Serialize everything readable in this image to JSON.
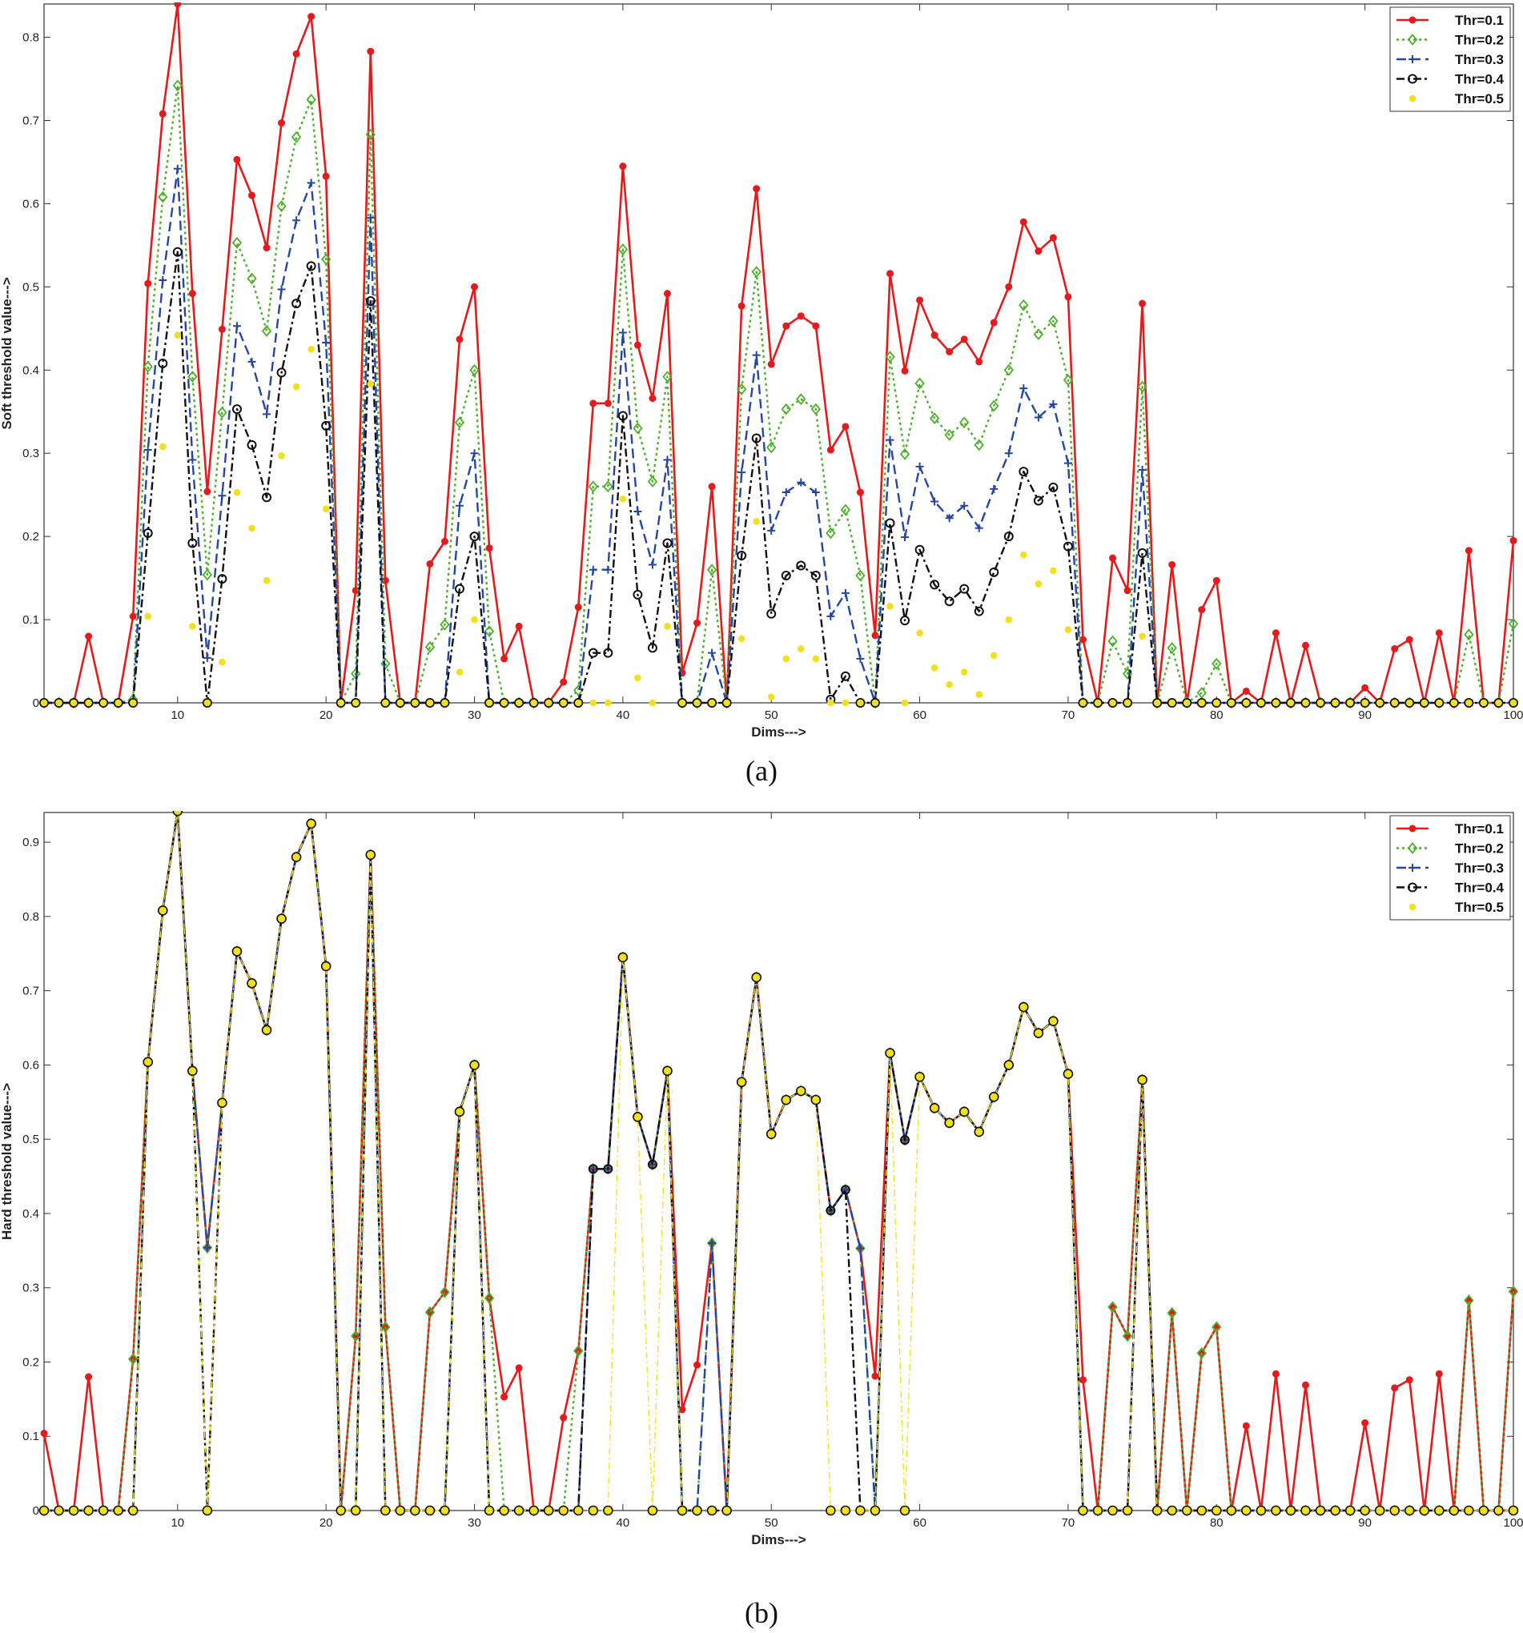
{
  "chart_data": [
    {
      "type": "line",
      "caption": "(a)",
      "xlabel": "Dims--->",
      "ylabel": "Soft threshold value--->",
      "xlim": [
        1,
        100
      ],
      "ylim": [
        0,
        0.84
      ],
      "xticks": [
        10,
        20,
        30,
        40,
        50,
        60,
        70,
        80,
        90,
        100
      ],
      "yticks": [
        0,
        0.1,
        0.2,
        0.3,
        0.4,
        0.5,
        0.6,
        0.7,
        0.8
      ],
      "grid": false,
      "legend_position": "top-right",
      "series": [
        {
          "name": "Thr=0.1",
          "color": "#e41a1c",
          "values": [
            0,
            0,
            0,
            0.08,
            0,
            0,
            0.104,
            0.504,
            0.708,
            0.84,
            0.492,
            0.254,
            0.449,
            0.653,
            0.61,
            0.547,
            0.697,
            0.78,
            0.825,
            0.633,
            0,
            0.135,
            0.783,
            0.147,
            0,
            0,
            0.167,
            0.194,
            0.437,
            0.5,
            0.186,
            0.053,
            0.092,
            0,
            0,
            0.025,
            0.115,
            0.36,
            0.36,
            0.645,
            0.43,
            0.366,
            0.492,
            0.036,
            0.096,
            0.26,
            0,
            0.477,
            0.618,
            0.407,
            0.453,
            0.465,
            0.453,
            0.304,
            0.332,
            0.253,
            0.081,
            0.516,
            0.399,
            0.484,
            0.442,
            0.422,
            0.437,
            0.41,
            0.457,
            0.5,
            0.578,
            0.543,
            0.559,
            0.488,
            0.076,
            0,
            0.174,
            0.135,
            0.48,
            0,
            0.166,
            0,
            0.112,
            0.147,
            0,
            0.014,
            0,
            0.084,
            0,
            0.069,
            0,
            0,
            0,
            0.018,
            0,
            0.065,
            0.076,
            0,
            0.084,
            0,
            0.183,
            0,
            0,
            0.195
          ]
        },
        {
          "name": "Thr=0.2",
          "color": "#4daf2a",
          "values": [
            0,
            0,
            0,
            0,
            0,
            0,
            0.004,
            0.404,
            0.608,
            0.742,
            0.392,
            0.154,
            0.349,
            0.553,
            0.51,
            0.447,
            0.597,
            0.68,
            0.725,
            0.533,
            0,
            0.035,
            0.683,
            0.047,
            0,
            0,
            0.067,
            0.094,
            0.337,
            0.4,
            0.086,
            0,
            0,
            0,
            0,
            0,
            0.015,
            0.26,
            0.26,
            0.545,
            0.33,
            0.266,
            0.392,
            0,
            0,
            0.16,
            0,
            0.377,
            0.518,
            0.307,
            0.353,
            0.365,
            0.353,
            0.204,
            0.232,
            0.153,
            0,
            0.416,
            0.299,
            0.384,
            0.342,
            0.322,
            0.337,
            0.31,
            0.357,
            0.4,
            0.478,
            0.443,
            0.459,
            0.388,
            0,
            0,
            0.074,
            0.035,
            0.38,
            0,
            0.066,
            0,
            0.012,
            0.047,
            0,
            0,
            0,
            0,
            0,
            0,
            0,
            0,
            0,
            0,
            0,
            0,
            0,
            0,
            0,
            0,
            0.082,
            0,
            0,
            0.095
          ]
        },
        {
          "name": "Thr=0.3",
          "color": "#2646a6",
          "values": [
            0,
            0,
            0,
            0,
            0,
            0,
            0,
            0.304,
            0.508,
            0.642,
            0.292,
            0.054,
            0.249,
            0.453,
            0.41,
            0.347,
            0.497,
            0.58,
            0.625,
            0.433,
            0,
            0,
            0.583,
            0,
            0,
            0,
            0,
            0,
            0.237,
            0.3,
            0,
            0,
            0,
            0,
            0,
            0,
            0,
            0.16,
            0.16,
            0.445,
            0.23,
            0.166,
            0.292,
            0,
            0,
            0.06,
            0,
            0.277,
            0.418,
            0.207,
            0.253,
            0.265,
            0.253,
            0.104,
            0.132,
            0.053,
            0,
            0.316,
            0.199,
            0.284,
            0.242,
            0.222,
            0.237,
            0.21,
            0.257,
            0.3,
            0.378,
            0.343,
            0.359,
            0.288,
            0,
            0,
            0,
            0,
            0.28,
            0,
            0,
            0,
            0,
            0,
            0,
            0,
            0,
            0,
            0,
            0,
            0,
            0,
            0,
            0,
            0,
            0,
            0,
            0,
            0,
            0,
            0,
            0,
            0,
            0
          ]
        },
        {
          "name": "Thr=0.4",
          "color": "#111111",
          "values": [
            0,
            0,
            0,
            0,
            0,
            0,
            0,
            0.204,
            0.408,
            0.542,
            0.192,
            0,
            0.149,
            0.353,
            0.31,
            0.247,
            0.397,
            0.48,
            0.525,
            0.333,
            0,
            0,
            0.483,
            0,
            0,
            0,
            0,
            0,
            0.137,
            0.2,
            0,
            0,
            0,
            0,
            0,
            0,
            0,
            0.06,
            0.06,
            0.345,
            0.13,
            0.066,
            0.192,
            0,
            0,
            0,
            0,
            0.177,
            0.318,
            0.107,
            0.153,
            0.165,
            0.153,
            0.004,
            0.032,
            0,
            0,
            0.216,
            0.099,
            0.184,
            0.142,
            0.122,
            0.137,
            0.11,
            0.157,
            0.2,
            0.278,
            0.243,
            0.259,
            0.188,
            0,
            0,
            0,
            0,
            0.18,
            0,
            0,
            0,
            0,
            0,
            0,
            0,
            0,
            0,
            0,
            0,
            0,
            0,
            0,
            0,
            0,
            0,
            0,
            0,
            0,
            0,
            0,
            0,
            0,
            0
          ]
        },
        {
          "name": "Thr=0.5",
          "color": "#f2e01e",
          "values": [
            0,
            0,
            0,
            0,
            0,
            0,
            0,
            0.104,
            0.308,
            0.442,
            0.092,
            0,
            0.049,
            0.253,
            0.21,
            0.147,
            0.297,
            0.38,
            0.425,
            0.233,
            0,
            0,
            0.383,
            0,
            0,
            0,
            0,
            0,
            0.037,
            0.1,
            0,
            0,
            0,
            0,
            0,
            0,
            0,
            0,
            0,
            0.245,
            0.03,
            0,
            0.092,
            0,
            0,
            0,
            0,
            0.077,
            0.218,
            0.007,
            0.053,
            0.065,
            0.053,
            0,
            0,
            0,
            0,
            0.116,
            0,
            0.084,
            0.042,
            0.022,
            0.037,
            0.01,
            0.057,
            0.1,
            0.178,
            0.143,
            0.159,
            0.088,
            0,
            0,
            0,
            0,
            0.08,
            0,
            0,
            0,
            0,
            0,
            0,
            0,
            0,
            0,
            0,
            0,
            0,
            0,
            0,
            0,
            0,
            0,
            0,
            0,
            0,
            0,
            0,
            0,
            0,
            0
          ]
        }
      ]
    },
    {
      "type": "line",
      "caption": "(b)",
      "xlabel": "Dims--->",
      "ylabel": "Hard threshold value--->",
      "xlim": [
        1,
        100
      ],
      "ylim": [
        0,
        0.94
      ],
      "xticks": [
        10,
        20,
        30,
        40,
        50,
        60,
        70,
        80,
        90,
        100
      ],
      "yticks": [
        0,
        0.1,
        0.2,
        0.3,
        0.4,
        0.5,
        0.6,
        0.7,
        0.8,
        0.9
      ],
      "grid": false,
      "legend_position": "top-right",
      "series": [
        {
          "name": "Thr=0.1",
          "color": "#e41a1c",
          "values": [
            0.104,
            0,
            0,
            0.18,
            0,
            0,
            0.204,
            0.604,
            0.808,
            0.942,
            0.592,
            0.354,
            0.549,
            0.753,
            0.71,
            0.647,
            0.797,
            0.88,
            0.925,
            0.733,
            0,
            0.235,
            0.883,
            0.247,
            0,
            0,
            0.267,
            0.294,
            0.537,
            0.6,
            0.286,
            0.153,
            0.192,
            0,
            0,
            0.125,
            0.215,
            0.46,
            0.46,
            0.745,
            0.53,
            0.466,
            0.592,
            0.136,
            0.196,
            0.36,
            0,
            0.577,
            0.718,
            0.507,
            0.553,
            0.565,
            0.553,
            0.404,
            0.432,
            0.353,
            0.181,
            0.616,
            0.499,
            0.584,
            0.542,
            0.522,
            0.537,
            0.51,
            0.557,
            0.6,
            0.678,
            0.643,
            0.659,
            0.588,
            0.176,
            0,
            0.274,
            0.235,
            0.58,
            0,
            0.266,
            0,
            0.212,
            0.247,
            0,
            0.114,
            0,
            0.184,
            0,
            0.169,
            0,
            0,
            0,
            0.118,
            0,
            0.165,
            0.176,
            0,
            0.184,
            0,
            0.283,
            0,
            0,
            0.295
          ]
        },
        {
          "name": "Thr=0.2",
          "color": "#4daf2a",
          "values": [
            0,
            0,
            0,
            0,
            0,
            0,
            0.204,
            0.604,
            0.808,
            0.942,
            0.592,
            0.354,
            0.549,
            0.753,
            0.71,
            0.647,
            0.797,
            0.88,
            0.925,
            0.733,
            0,
            0.235,
            0.883,
            0.247,
            0,
            0,
            0.267,
            0.294,
            0.537,
            0.6,
            0.286,
            0,
            0,
            0,
            0,
            0,
            0.215,
            0.46,
            0.46,
            0.745,
            0.53,
            0.466,
            0.592,
            0,
            0,
            0.36,
            0,
            0.577,
            0.718,
            0.507,
            0.553,
            0.565,
            0.553,
            0.404,
            0.432,
            0.353,
            0,
            0.616,
            0.499,
            0.584,
            0.542,
            0.522,
            0.537,
            0.51,
            0.557,
            0.6,
            0.678,
            0.643,
            0.659,
            0.588,
            0,
            0,
            0.274,
            0.235,
            0.58,
            0,
            0.266,
            0,
            0.212,
            0.247,
            0,
            0,
            0,
            0,
            0,
            0,
            0,
            0,
            0,
            0,
            0,
            0,
            0,
            0,
            0,
            0,
            0.283,
            0,
            0,
            0.295
          ]
        },
        {
          "name": "Thr=0.3",
          "color": "#2646a6",
          "values": [
            0,
            0,
            0,
            0,
            0,
            0,
            0,
            0.604,
            0.808,
            0.942,
            0.592,
            0.354,
            0.549,
            0.753,
            0.71,
            0.647,
            0.797,
            0.88,
            0.925,
            0.733,
            0,
            0,
            0.883,
            0,
            0,
            0,
            0,
            0,
            0.537,
            0.6,
            0,
            0,
            0,
            0,
            0,
            0,
            0,
            0.46,
            0.46,
            0.745,
            0.53,
            0.466,
            0.592,
            0,
            0,
            0.36,
            0,
            0.577,
            0.718,
            0.507,
            0.553,
            0.565,
            0.553,
            0.404,
            0.432,
            0.353,
            0,
            0.616,
            0.499,
            0.584,
            0.542,
            0.522,
            0.537,
            0.51,
            0.557,
            0.6,
            0.678,
            0.643,
            0.659,
            0.588,
            0,
            0,
            0,
            0,
            0.58,
            0,
            0,
            0,
            0,
            0,
            0,
            0,
            0,
            0,
            0,
            0,
            0,
            0,
            0,
            0,
            0,
            0,
            0,
            0,
            0,
            0,
            0,
            0,
            0,
            0
          ]
        },
        {
          "name": "Thr=0.4",
          "color": "#111111",
          "values": [
            0,
            0,
            0,
            0,
            0,
            0,
            0,
            0.604,
            0.808,
            0.942,
            0.592,
            0,
            0.549,
            0.753,
            0.71,
            0.647,
            0.797,
            0.88,
            0.925,
            0.733,
            0,
            0,
            0.883,
            0,
            0,
            0,
            0,
            0,
            0.537,
            0.6,
            0,
            0,
            0,
            0,
            0,
            0,
            0,
            0.46,
            0.46,
            0.745,
            0.53,
            0.466,
            0.592,
            0,
            0,
            0,
            0,
            0.577,
            0.718,
            0.507,
            0.553,
            0.565,
            0.553,
            0.404,
            0.432,
            0,
            0,
            0.616,
            0.499,
            0.584,
            0.542,
            0.522,
            0.537,
            0.51,
            0.557,
            0.6,
            0.678,
            0.643,
            0.659,
            0.588,
            0,
            0,
            0,
            0,
            0.58,
            0,
            0,
            0,
            0,
            0,
            0,
            0,
            0,
            0,
            0,
            0,
            0,
            0,
            0,
            0,
            0,
            0,
            0,
            0,
            0,
            0,
            0,
            0,
            0,
            0
          ]
        },
        {
          "name": "Thr=0.5",
          "color": "#f2e01e",
          "values": [
            0,
            0,
            0,
            0,
            0,
            0,
            0,
            0.604,
            0.808,
            0.942,
            0.592,
            0,
            0.549,
            0.753,
            0.71,
            0.647,
            0.797,
            0.88,
            0.925,
            0.733,
            0,
            0,
            0.883,
            0,
            0,
            0,
            0,
            0,
            0.537,
            0.6,
            0,
            0,
            0,
            0,
            0,
            0,
            0,
            0,
            0,
            0.745,
            0.53,
            0,
            0.592,
            0,
            0,
            0,
            0,
            0.577,
            0.718,
            0.507,
            0.553,
            0.565,
            0.553,
            0,
            0,
            0,
            0,
            0.616,
            0,
            0.584,
            0.542,
            0.522,
            0.537,
            0.51,
            0.557,
            0.6,
            0.678,
            0.643,
            0.659,
            0.588,
            0,
            0,
            0,
            0,
            0.58,
            0,
            0,
            0,
            0,
            0,
            0,
            0,
            0,
            0,
            0,
            0,
            0,
            0,
            0,
            0,
            0,
            0,
            0,
            0,
            0,
            0,
            0,
            0,
            0,
            0
          ]
        }
      ]
    }
  ]
}
